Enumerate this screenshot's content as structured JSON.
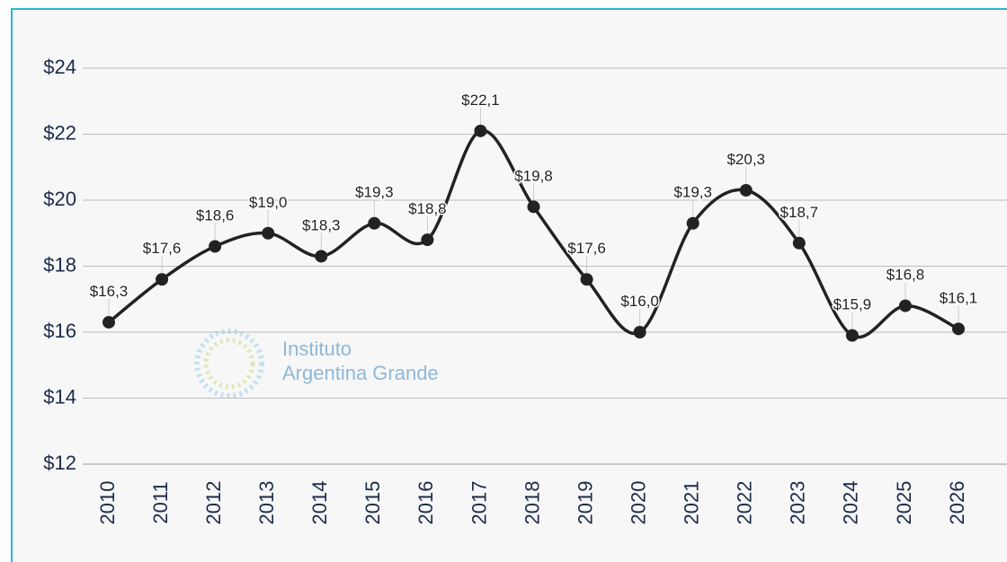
{
  "chart_data": {
    "type": "line",
    "watermark": [
      "Instituto",
      "Argentina Grande"
    ],
    "categories": [
      "2010",
      "2011",
      "2012",
      "2013",
      "2014",
      "2015",
      "2016",
      "2017",
      "2018",
      "2019",
      "2020",
      "2021",
      "2022",
      "2023",
      "2024",
      "2025",
      "2026"
    ],
    "series": [
      {
        "name": null,
        "color": "#222222",
        "values": [
          16.3,
          17.6,
          18.6,
          19.0,
          18.3,
          19.3,
          18.8,
          22.1,
          19.8,
          17.6,
          16.0,
          19.3,
          20.3,
          18.7,
          15.9,
          16.8,
          16.1
        ],
        "value_labels": [
          "$16,3",
          "$17,6",
          "$18,6",
          "$19,0",
          "$18,3",
          "$19,3",
          "$18,8",
          "$22,1",
          "$19,8",
          "$17,6",
          "$16,0",
          "$19,3",
          "$20,3",
          "$18,7",
          "$15,9",
          "$16,8",
          "$16,1"
        ]
      }
    ],
    "ylim": [
      12,
      24
    ],
    "yticks": [
      {
        "value": 12,
        "label": "$12"
      },
      {
        "value": 14,
        "label": "$14"
      },
      {
        "value": 16,
        "label": "$16"
      },
      {
        "value": 18,
        "label": "$18"
      },
      {
        "value": 20,
        "label": "$20"
      },
      {
        "value": 22,
        "label": "$22"
      },
      {
        "value": 24,
        "label": "$24"
      }
    ],
    "grid": true
  }
}
